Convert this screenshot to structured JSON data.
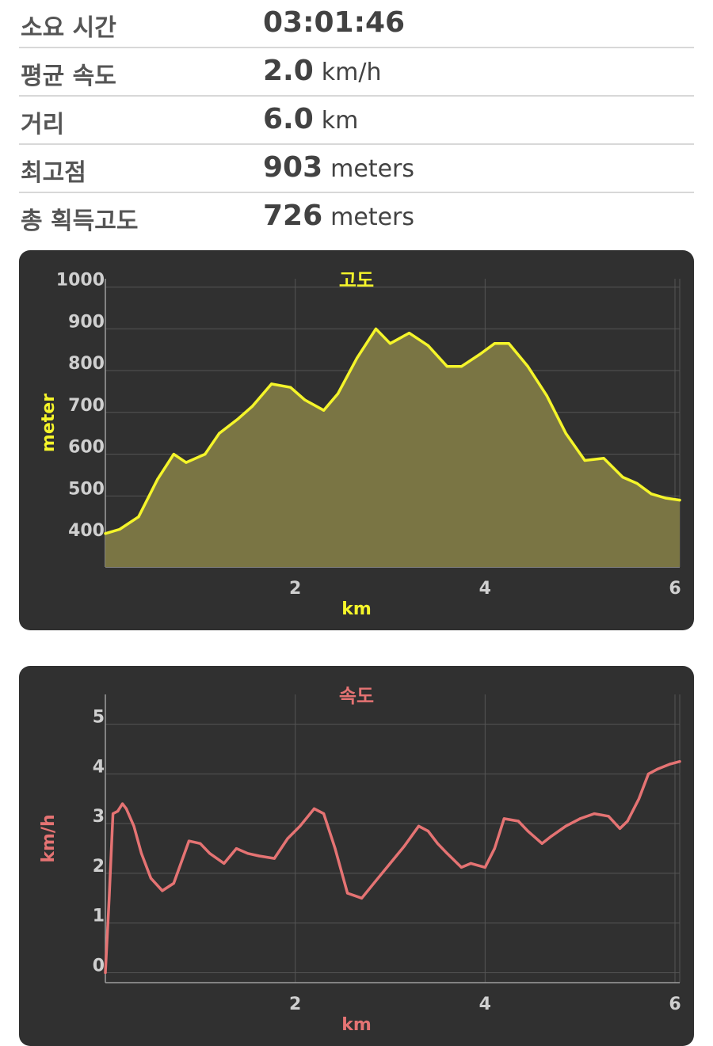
{
  "stats": [
    {
      "label": "소요 시간",
      "value": "03:01:46",
      "unit": ""
    },
    {
      "label": "평균 속도",
      "value": "2.0",
      "unit": "km/h"
    },
    {
      "label": "거리",
      "value": "6.0",
      "unit": "km"
    },
    {
      "label": "최고점",
      "value": "903",
      "unit": "meters"
    },
    {
      "label": "총 획득고도",
      "value": "726",
      "unit": "meters"
    }
  ],
  "colors": {
    "panel_bg": "#303030",
    "grid": "#555555",
    "elevation": "#f5f52a",
    "elevation_fill": "#7a7544",
    "speed": "#e57373"
  },
  "chart_data": [
    {
      "type": "area",
      "title": "고도",
      "xlabel": "km",
      "ylabel": "meter",
      "xlim": [
        0,
        6.05
      ],
      "ylim": [
        330,
        1020
      ],
      "x_ticks": [
        2,
        4,
        6
      ],
      "y_ticks": [
        400,
        500,
        600,
        700,
        800,
        900,
        1000
      ],
      "grid": true,
      "series": [
        {
          "x": [
            0,
            0.15,
            0.35,
            0.55,
            0.72,
            0.85,
            1.05,
            1.2,
            1.4,
            1.55,
            1.75,
            1.95,
            2.1,
            2.3,
            2.45,
            2.65,
            2.85,
            3.0,
            3.2,
            3.4,
            3.6,
            3.75,
            3.95,
            4.1,
            4.25,
            4.45,
            4.65,
            4.85,
            5.05,
            5.25,
            5.45,
            5.6,
            5.75,
            5.9,
            6.05
          ],
          "y": [
            410,
            420,
            450,
            540,
            600,
            580,
            600,
            650,
            685,
            715,
            768,
            760,
            730,
            705,
            745,
            830,
            900,
            865,
            890,
            860,
            810,
            810,
            840,
            865,
            865,
            810,
            740,
            650,
            585,
            590,
            545,
            530,
            505,
            495,
            490
          ]
        }
      ]
    },
    {
      "type": "line",
      "title": "속도",
      "xlabel": "km",
      "ylabel": "km/h",
      "xlim": [
        0,
        6.05
      ],
      "ylim": [
        -0.2,
        5.6
      ],
      "x_ticks": [
        2,
        4,
        6
      ],
      "y_ticks": [
        0,
        1,
        2,
        3,
        4,
        5
      ],
      "grid": true,
      "series": [
        {
          "x": [
            0,
            0.04,
            0.08,
            0.13,
            0.18,
            0.22,
            0.3,
            0.38,
            0.48,
            0.6,
            0.72,
            0.88,
            1.0,
            1.1,
            1.25,
            1.38,
            1.5,
            1.62,
            1.78,
            1.92,
            2.05,
            2.2,
            2.3,
            2.42,
            2.55,
            2.7,
            2.85,
            3.0,
            3.15,
            3.3,
            3.4,
            3.5,
            3.6,
            3.75,
            3.85,
            4.0,
            4.1,
            4.2,
            4.35,
            4.45,
            4.6,
            4.7,
            4.85,
            5.0,
            5.15,
            5.3,
            5.42,
            5.5,
            5.62,
            5.72,
            5.82,
            5.95,
            6.05
          ],
          "y": [
            0,
            1.5,
            3.2,
            3.25,
            3.4,
            3.3,
            2.95,
            2.4,
            1.9,
            1.65,
            1.8,
            2.65,
            2.6,
            2.4,
            2.2,
            2.5,
            2.4,
            2.35,
            2.3,
            2.7,
            2.95,
            3.3,
            3.2,
            2.5,
            1.6,
            1.5,
            1.85,
            2.2,
            2.55,
            2.95,
            2.85,
            2.6,
            2.4,
            2.12,
            2.2,
            2.12,
            2.5,
            3.1,
            3.05,
            2.85,
            2.6,
            2.75,
            2.95,
            3.1,
            3.2,
            3.15,
            2.9,
            3.05,
            3.5,
            4.0,
            4.1,
            4.2,
            4.25
          ]
        }
      ]
    }
  ]
}
